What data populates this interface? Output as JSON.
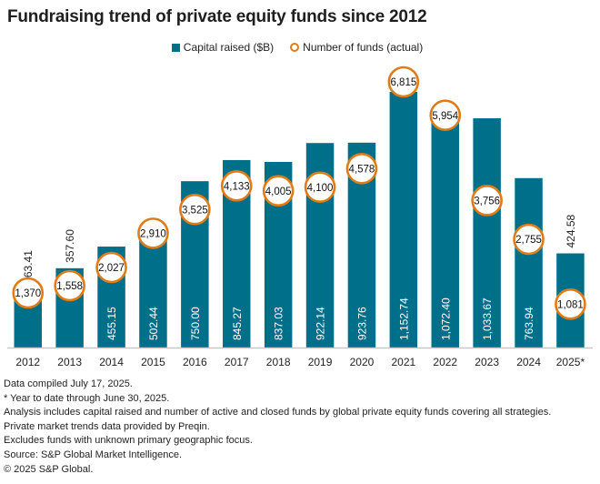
{
  "colors": {
    "bar": "#00708a",
    "circle_stroke": "#e07b16",
    "circle_fill": "#ffffff",
    "axis": "#c8c8c8"
  },
  "chart_data": {
    "type": "bar",
    "title": "Fundraising trend of private equity funds since 2012",
    "xlabel": "",
    "ylabel": "",
    "grid": false,
    "legend_position": "top-center",
    "categories": [
      "2012",
      "2013",
      "2014",
      "2015",
      "2016",
      "2017",
      "2018",
      "2019",
      "2020",
      "2021",
      "2022",
      "2023",
      "2024",
      "2025*"
    ],
    "series": [
      {
        "name": "Capital raised ($B)",
        "kind": "bar",
        "values": [
          263.41,
          357.6,
          455.15,
          502.44,
          750.0,
          845.27,
          837.03,
          922.14,
          923.76,
          1152.74,
          1072.4,
          1033.67,
          763.94,
          424.58
        ],
        "labels": [
          "263.41",
          "357.60",
          "455.15",
          "502.44",
          "750.00",
          "845.27",
          "837.03",
          "922.14",
          "923.76",
          "1,152.74",
          "1,072.40",
          "1,033.67",
          "763.94",
          "424.58"
        ]
      },
      {
        "name": "Number of funds (actual)",
        "kind": "marker",
        "values": [
          1370,
          1558,
          2027,
          2910,
          3525,
          4133,
          4005,
          4100,
          4578,
          6815,
          5954,
          3756,
          2755,
          1081
        ],
        "labels": [
          "1,370",
          "1,558",
          "2,027",
          "2,910",
          "3,525",
          "4,133",
          "4,005",
          "4,100",
          "4,578",
          "6,815",
          "5,954",
          "3,756",
          "2,755",
          "1,081"
        ]
      }
    ],
    "ylim_bars": [
      0,
      1200
    ],
    "ylim_markers": [
      0,
      7000
    ]
  },
  "legend": {
    "bar_label": "Capital raised ($B)",
    "marker_label": "Number of funds (actual)"
  },
  "notes": [
    "Data compiled July 17, 2025.",
    "* Year to date through June 30, 2025.",
    "Analysis includes capital raised and number of active and closed funds by global private equity funds covering all strategies.",
    "Private market trends data provided by Preqin.",
    "Excludes funds with unknown primary geographic focus.",
    "Source: S&P Global Market Intelligence.",
    "© 2025 S&P Global."
  ]
}
